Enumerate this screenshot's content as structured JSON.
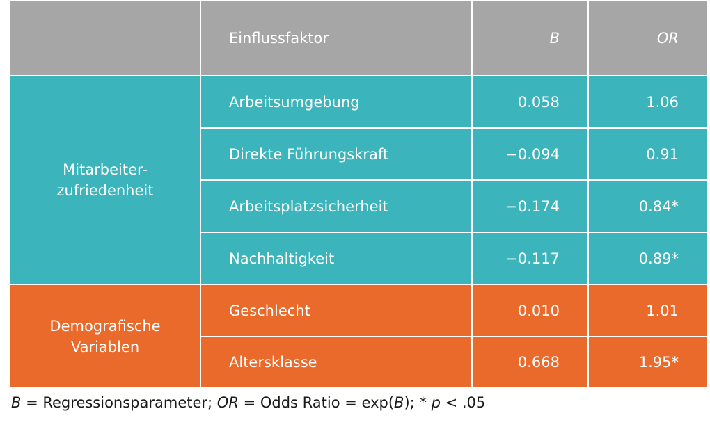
{
  "chart_data": {
    "type": "table",
    "columns": [
      "",
      "Einflussfaktor",
      "B",
      "OR"
    ],
    "groups": [
      {
        "name": "Mitarbeiter-zufriedenheit",
        "name_lines": [
          "Mitarbeiter-",
          "zufriedenheit"
        ],
        "color": "#3cb4bb",
        "rows": [
          {
            "factor": "Arbeitsumgebung",
            "b": "0.058",
            "or": "1.06"
          },
          {
            "factor": "Direkte Führungskraft",
            "b": "−0.094",
            "or": "0.91"
          },
          {
            "factor": "Arbeitsplatzsicherheit",
            "b": "−0.174",
            "or": "0.84*"
          },
          {
            "factor": "Nachhaltigkeit",
            "b": "−0.117",
            "or": "0.89*"
          }
        ]
      },
      {
        "name": "Demografische Variablen",
        "name_lines": [
          "Demografische",
          "Variablen"
        ],
        "color": "#ea6a2b",
        "rows": [
          {
            "factor": "Geschlecht",
            "b": "0.010",
            "or": "1.01"
          },
          {
            "factor": "Altersklasse",
            "b": "0.668",
            "or": "1.95*"
          }
        ]
      }
    ],
    "header_color": "#a6a6a6"
  },
  "footnote": {
    "b_symbol": "B",
    "b_text": " = Regressionsparameter; ",
    "or_symbol": "OR",
    "or_text": " = Odds Ratio = exp(",
    "b_symbol_2": "B",
    "sig_text": "); * ",
    "p_symbol": "p",
    "p_text": " < .05"
  }
}
